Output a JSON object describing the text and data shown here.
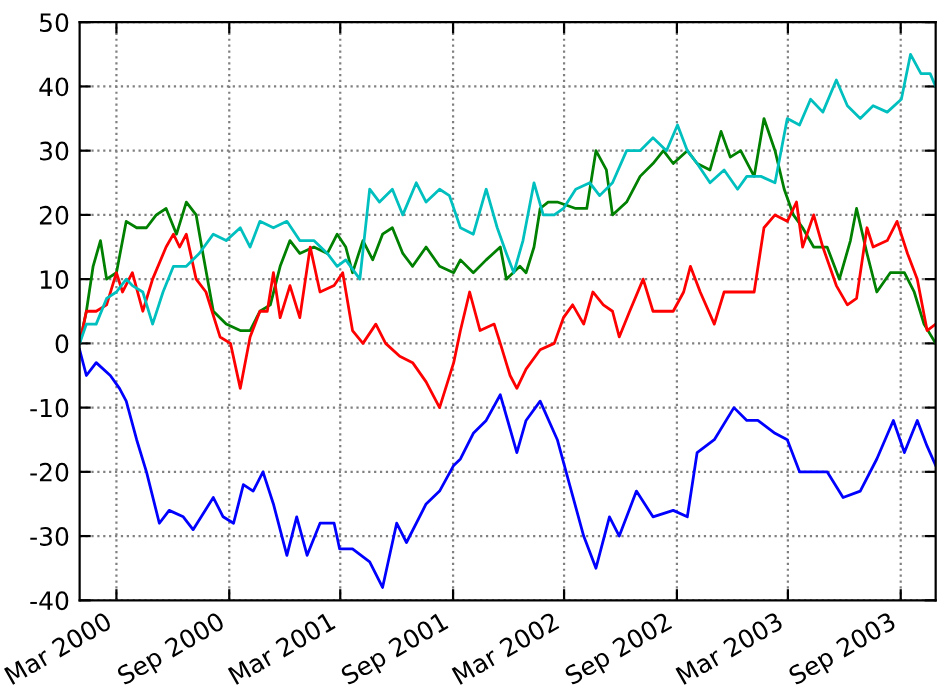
{
  "chart_data": {
    "type": "line",
    "xlim": [
      "2000-01-01",
      "2003-10-28"
    ],
    "ylim": [
      -40,
      50
    ],
    "xticks": [
      {
        "value": "2000-03-01",
        "label": "Mar 2000"
      },
      {
        "value": "2000-09-01",
        "label": "Sep 2000"
      },
      {
        "value": "2001-03-01",
        "label": "Mar 2001"
      },
      {
        "value": "2001-09-01",
        "label": "Sep 2001"
      },
      {
        "value": "2002-03-01",
        "label": "Mar 2002"
      },
      {
        "value": "2002-09-01",
        "label": "Sep 2002"
      },
      {
        "value": "2003-03-01",
        "label": "Mar 2003"
      },
      {
        "value": "2003-09-01",
        "label": "Sep 2003"
      }
    ],
    "yticks": [
      -40,
      -30,
      -20,
      -10,
      0,
      10,
      20,
      30,
      40,
      50
    ],
    "grid": true,
    "legend": false,
    "marker": "none",
    "line_style": "solid",
    "series": [
      {
        "color": "#0000ff",
        "x": [
          "2000-01-01",
          "2000-01-12",
          "2000-01-28",
          "2000-02-20",
          "2000-03-06",
          "2000-03-17",
          "2000-04-03",
          "2000-04-19",
          "2000-05-10",
          "2000-05-26",
          "2000-06-18",
          "2000-07-04",
          "2000-08-06",
          "2000-08-22",
          "2000-09-08",
          "2000-09-24",
          "2000-10-10",
          "2000-10-26",
          "2000-11-12",
          "2000-12-04",
          "2000-12-20",
          "2001-01-06",
          "2001-01-27",
          "2001-02-19",
          "2001-02-28",
          "2001-03-21",
          "2001-04-18",
          "2001-05-09",
          "2001-06-01",
          "2001-06-17",
          "2001-07-19",
          "2001-08-10",
          "2001-09-02",
          "2001-09-13",
          "2001-10-04",
          "2001-10-25",
          "2001-11-17",
          "2001-12-14",
          "2001-12-29",
          "2002-01-21",
          "2002-02-18",
          "2002-03-10",
          "2002-04-02",
          "2002-04-22",
          "2002-05-14",
          "2002-05-30",
          "2002-06-27",
          "2002-07-24",
          "2002-08-26",
          "2002-09-18",
          "2002-10-04",
          "2002-11-01",
          "2002-12-03",
          "2002-12-24",
          "2003-01-11",
          "2003-02-08",
          "2003-02-28",
          "2003-03-20",
          "2003-04-12",
          "2003-05-04",
          "2003-05-30",
          "2003-06-27",
          "2003-07-24",
          "2003-08-20",
          "2003-09-07",
          "2003-09-28",
          "2003-10-14",
          "2003-10-28"
        ],
        "values": [
          -1,
          -5,
          -3,
          -5,
          -7,
          -9,
          -15,
          -20,
          -28,
          -26,
          -27,
          -29,
          -24,
          -27,
          -28,
          -22,
          -23,
          -20,
          -25,
          -33,
          -27,
          -33,
          -28,
          -28,
          -32,
          -32,
          -34,
          -38,
          -28,
          -31,
          -25,
          -23,
          -19,
          -18,
          -14,
          -12,
          -8,
          -17,
          -12,
          -9,
          -15,
          -22,
          -30,
          -35,
          -27,
          -30,
          -23,
          -27,
          -26,
          -27,
          -17,
          -15,
          -10,
          -12,
          -12,
          -14,
          -15,
          -20,
          -20,
          -20,
          -24,
          -23,
          -18,
          -12,
          -17,
          -12,
          -16,
          -19
        ]
      },
      {
        "color": "#008000",
        "x": [
          "2000-01-01",
          "2000-01-12",
          "2000-01-23",
          "2000-02-04",
          "2000-02-14",
          "2000-03-01",
          "2000-03-17",
          "2000-04-03",
          "2000-04-19",
          "2000-05-05",
          "2000-05-21",
          "2000-06-07",
          "2000-06-23",
          "2000-07-09",
          "2000-07-20",
          "2000-08-06",
          "2000-08-27",
          "2000-09-19",
          "2000-10-05",
          "2000-10-21",
          "2000-11-07",
          "2000-11-23",
          "2000-12-09",
          "2000-12-25",
          "2001-01-17",
          "2001-02-08",
          "2001-02-24",
          "2001-03-10",
          "2001-03-21",
          "2001-04-07",
          "2001-04-23",
          "2001-05-09",
          "2001-05-25",
          "2001-06-11",
          "2001-06-27",
          "2001-07-19",
          "2001-08-10",
          "2001-09-02",
          "2001-09-13",
          "2001-10-04",
          "2001-10-25",
          "2001-11-17",
          "2001-11-27",
          "2001-12-19",
          "2001-12-29",
          "2002-01-11",
          "2002-01-21",
          "2002-02-03",
          "2002-02-18",
          "2002-03-20",
          "2002-04-07",
          "2002-04-22",
          "2002-05-09",
          "2002-05-19",
          "2002-06-11",
          "2002-07-03",
          "2002-07-24",
          "2002-08-10",
          "2002-08-26",
          "2002-09-18",
          "2002-10-04",
          "2002-10-25",
          "2002-11-12",
          "2002-11-27",
          "2002-12-14",
          "2003-01-05",
          "2003-01-21",
          "2003-02-08",
          "2003-02-23",
          "2003-03-10",
          "2003-03-25",
          "2003-04-12",
          "2003-05-04",
          "2003-05-24",
          "2003-06-11",
          "2003-06-21",
          "2003-07-08",
          "2003-07-24",
          "2003-08-15",
          "2003-09-07",
          "2003-09-23",
          "2003-10-09",
          "2003-10-28"
        ],
        "values": [
          0,
          5,
          12,
          16,
          10,
          11,
          19,
          18,
          18,
          20,
          21,
          17,
          22,
          20,
          14,
          5,
          3,
          2,
          2,
          5,
          6,
          12,
          16,
          14,
          15,
          14,
          17,
          15,
          11,
          16,
          13,
          17,
          18,
          14,
          12,
          15,
          12,
          11,
          13,
          11,
          13,
          15,
          10,
          12,
          11,
          15,
          21,
          22,
          22,
          21,
          21,
          30,
          27,
          20,
          22,
          26,
          28,
          30,
          28,
          30,
          28,
          27,
          33,
          29,
          30,
          26,
          35,
          30,
          24,
          20,
          18,
          15,
          15,
          10,
          16,
          21,
          14,
          8,
          11,
          11,
          8,
          3,
          0
        ]
      },
      {
        "color": "#ff0000",
        "x": [
          "2000-01-01",
          "2000-01-12",
          "2000-01-28",
          "2000-02-14",
          "2000-03-01",
          "2000-03-11",
          "2000-03-27",
          "2000-04-13",
          "2000-04-29",
          "2000-05-21",
          "2000-06-02",
          "2000-06-12",
          "2000-06-23",
          "2000-07-09",
          "2000-07-25",
          "2000-08-17",
          "2000-09-03",
          "2000-09-19",
          "2000-10-05",
          "2000-10-21",
          "2000-11-02",
          "2000-11-12",
          "2000-11-23",
          "2000-12-09",
          "2000-12-25",
          "2001-01-11",
          "2001-01-27",
          "2001-02-19",
          "2001-03-05",
          "2001-03-21",
          "2001-04-07",
          "2001-04-28",
          "2001-05-14",
          "2001-06-06",
          "2001-06-27",
          "2001-07-19",
          "2001-08-10",
          "2001-09-02",
          "2001-09-13",
          "2001-09-28",
          "2001-10-15",
          "2001-11-07",
          "2001-11-17",
          "2001-12-03",
          "2001-12-14",
          "2001-12-29",
          "2002-01-21",
          "2002-02-13",
          "2002-02-28",
          "2002-03-15",
          "2002-04-02",
          "2002-04-17",
          "2002-05-04",
          "2002-05-19",
          "2002-05-30",
          "2002-06-16",
          "2002-07-08",
          "2002-07-24",
          "2002-08-10",
          "2002-08-26",
          "2002-09-12",
          "2002-09-23",
          "2002-10-09",
          "2002-11-01",
          "2002-11-17",
          "2002-12-14",
          "2003-01-05",
          "2003-01-21",
          "2003-02-08",
          "2003-02-28",
          "2003-03-15",
          "2003-03-25",
          "2003-04-12",
          "2003-04-27",
          "2003-05-19",
          "2003-06-06",
          "2003-06-21",
          "2003-07-08",
          "2003-07-18",
          "2003-08-10",
          "2003-08-26",
          "2003-09-12",
          "2003-09-28",
          "2003-10-14",
          "2003-10-28"
        ],
        "values": [
          0,
          5,
          5,
          6,
          11,
          8,
          11,
          5,
          10,
          15,
          17,
          15,
          17,
          10,
          8,
          1,
          0,
          -7,
          1,
          5,
          5,
          11,
          4,
          9,
          4,
          15,
          8,
          9,
          11,
          2,
          0,
          3,
          0,
          -2,
          -3,
          -6,
          -10,
          -3,
          2,
          8,
          2,
          3,
          0,
          -5,
          -7,
          -4,
          -1,
          0,
          4,
          6,
          3,
          8,
          6,
          5,
          1,
          5,
          10,
          5,
          5,
          5,
          8,
          12,
          8,
          3,
          8,
          8,
          8,
          18,
          20,
          19,
          22,
          15,
          20,
          15,
          9,
          6,
          7,
          18,
          15,
          16,
          19,
          14,
          10,
          2,
          3
        ]
      },
      {
        "color": "#00bfbf",
        "x": [
          "2000-01-01",
          "2000-01-12",
          "2000-01-28",
          "2000-02-14",
          "2000-03-01",
          "2000-03-17",
          "2000-03-27",
          "2000-04-13",
          "2000-04-29",
          "2000-05-16",
          "2000-06-02",
          "2000-06-23",
          "2000-07-14",
          "2000-08-06",
          "2000-08-27",
          "2000-09-19",
          "2000-10-05",
          "2000-10-21",
          "2000-11-12",
          "2000-12-04",
          "2000-12-25",
          "2001-01-17",
          "2001-02-08",
          "2001-02-24",
          "2001-03-10",
          "2001-04-02",
          "2001-04-18",
          "2001-05-04",
          "2001-05-25",
          "2001-06-11",
          "2001-07-03",
          "2001-07-19",
          "2001-08-10",
          "2001-08-26",
          "2001-09-13",
          "2001-10-04",
          "2001-10-25",
          "2001-11-12",
          "2001-11-27",
          "2001-12-09",
          "2001-12-24",
          "2002-01-11",
          "2002-01-26",
          "2002-02-13",
          "2002-02-28",
          "2002-03-20",
          "2002-04-12",
          "2002-04-28",
          "2002-05-19",
          "2002-06-11",
          "2002-07-03",
          "2002-07-24",
          "2002-08-15",
          "2002-09-02",
          "2002-09-18",
          "2002-10-04",
          "2002-10-25",
          "2002-11-17",
          "2002-12-09",
          "2002-12-24",
          "2003-01-16",
          "2003-02-08",
          "2003-02-28",
          "2003-03-20",
          "2003-04-07",
          "2003-04-27",
          "2003-05-19",
          "2003-06-06",
          "2003-06-27",
          "2003-07-18",
          "2003-08-10",
          "2003-09-02",
          "2003-09-17",
          "2003-10-04",
          "2003-10-19",
          "2003-10-28"
        ],
        "values": [
          0,
          3,
          3,
          7,
          8,
          10,
          9,
          8,
          3,
          8,
          12,
          12,
          14,
          17,
          16,
          18,
          15,
          19,
          18,
          19,
          16,
          16,
          14,
          12,
          13,
          10,
          24,
          22,
          24,
          20,
          25,
          22,
          24,
          23,
          18,
          17,
          24,
          18,
          14,
          11,
          16,
          25,
          20,
          20,
          21,
          24,
          25,
          23,
          25,
          30,
          30,
          32,
          30,
          34,
          30,
          28,
          25,
          27,
          24,
          26,
          26,
          25,
          35,
          34,
          38,
          36,
          41,
          37,
          35,
          37,
          36,
          38,
          45,
          42,
          42,
          40
        ]
      }
    ]
  }
}
